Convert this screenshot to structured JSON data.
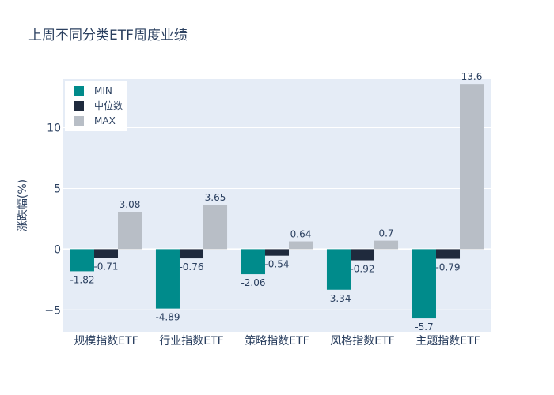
{
  "chart_data": {
    "type": "bar",
    "title": "上周不同分类ETF周度业绩",
    "ylabel": "涨跌幅(%)",
    "xlabel": "",
    "categories": [
      "规模指数ETF",
      "行业指数ETF",
      "策略指数ETF",
      "风格指数ETF",
      "主题指数ETF"
    ],
    "series": [
      {
        "name": "MIN",
        "color": "#008b8b",
        "values": [
          -1.82,
          -4.89,
          -2.06,
          -3.34,
          -5.7
        ]
      },
      {
        "name": "中位数",
        "color": "#1f2a3d",
        "values": [
          -0.71,
          -0.76,
          -0.54,
          -0.92,
          -0.79
        ]
      },
      {
        "name": "MAX",
        "color": "#b8bec6",
        "values": [
          3.08,
          3.65,
          0.64,
          0.7,
          13.6
        ]
      }
    ],
    "ylim": [
      -6.8,
      14.0
    ],
    "yticks": [
      -5,
      0,
      5,
      10
    ],
    "grid": true,
    "legend_position": "top-left",
    "plot_bgcolor": "#e5ecf6"
  }
}
